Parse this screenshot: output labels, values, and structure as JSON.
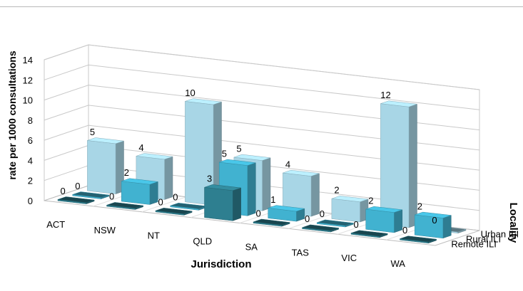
{
  "chart_data": {
    "type": "bar",
    "title": "",
    "xlabel": "Jurisdiction",
    "ylabel": "rate per 1000 consultations",
    "zlabel": "Locality",
    "categories": [
      "ACT",
      "NSW",
      "NT",
      "QLD",
      "SA",
      "TAS",
      "VIC",
      "WA"
    ],
    "ylim": [
      0,
      14
    ],
    "yticks": [
      0,
      2,
      4,
      6,
      8,
      10,
      12,
      14
    ],
    "grid": true,
    "series": [
      {
        "name": "Remote ILI",
        "values": [
          0,
          0,
          0,
          3,
          0,
          0,
          0,
          0
        ],
        "color": "#2e7f90"
      },
      {
        "name": "Rural ILI",
        "values": [
          0,
          2,
          0,
          5,
          1,
          0,
          2,
          2
        ],
        "color": "#41b2d0"
      },
      {
        "name": "Urban ILI",
        "values": [
          5,
          4,
          10,
          5,
          4,
          2,
          12,
          0
        ],
        "color": "#a8d6e6"
      }
    ]
  }
}
